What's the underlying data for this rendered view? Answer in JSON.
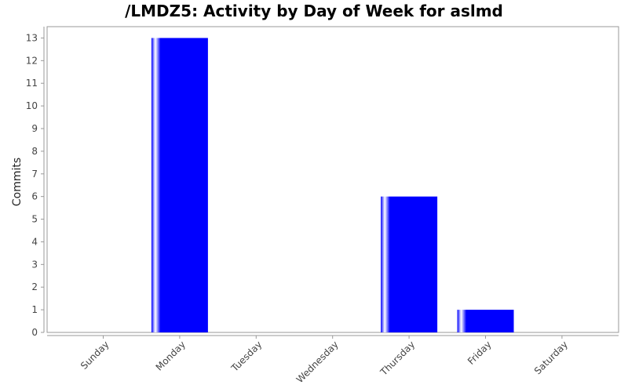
{
  "chart_data": {
    "type": "bar",
    "title": "/LMDZ5: Activity by Day of Week for aslmd",
    "xlabel": "",
    "ylabel": "Commits",
    "categories": [
      "Sunday",
      "Monday",
      "Tuesday",
      "Wednesday",
      "Thursday",
      "Friday",
      "Saturday"
    ],
    "values": [
      0,
      13,
      0,
      0,
      6,
      1,
      0
    ],
    "ylim": [
      0,
      13.5
    ],
    "yticks": [
      0,
      1,
      2,
      3,
      4,
      5,
      6,
      7,
      8,
      9,
      10,
      11,
      12,
      13
    ],
    "grid": false,
    "legend": "none",
    "colors": {
      "bar": "#0000ff",
      "bar_highlight": "#ffffff",
      "plot_border": "#999999"
    }
  }
}
